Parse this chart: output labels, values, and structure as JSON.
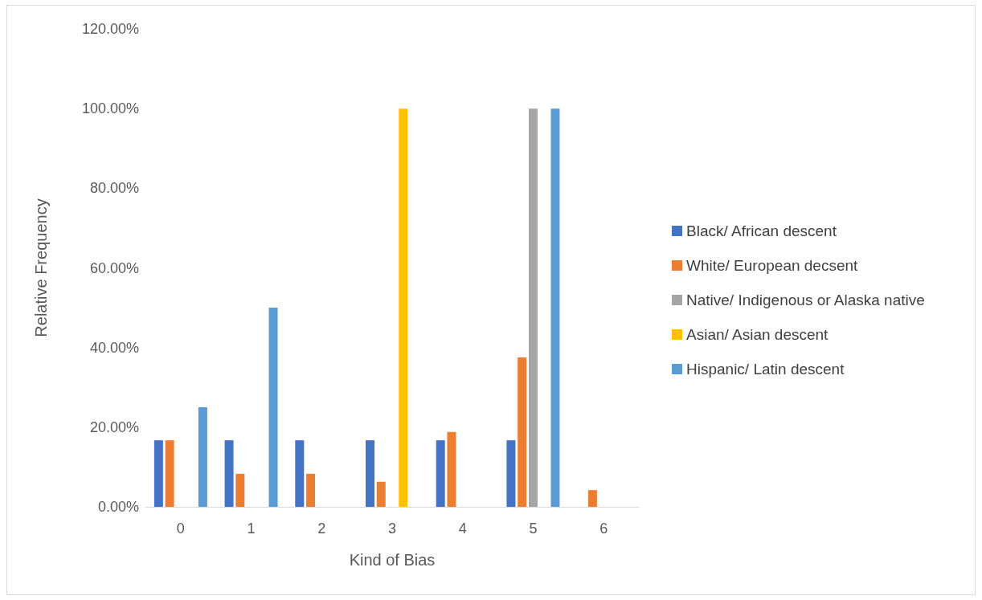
{
  "chart_data": {
    "type": "bar",
    "xlabel": "Kind of Bias",
    "ylabel": "Relative Frequency",
    "categories": [
      "0",
      "1",
      "2",
      "3",
      "4",
      "5",
      "6"
    ],
    "series": [
      {
        "name": "Black/ African descent",
        "color": "#4472c4",
        "values": [
          16.7,
          16.7,
          16.7,
          16.7,
          16.7,
          16.7,
          null
        ]
      },
      {
        "name": "White/ European decsent",
        "color": "#ed7d31",
        "values": [
          16.7,
          8.3,
          8.3,
          6.3,
          18.8,
          37.5,
          4.2
        ]
      },
      {
        "name": "Native/ Indigenous or Alaska native",
        "color": "#a5a5a5",
        "values": [
          null,
          null,
          null,
          null,
          null,
          100,
          null
        ]
      },
      {
        "name": "Asian/ Asian descent",
        "color": "#ffc000",
        "values": [
          null,
          null,
          null,
          100,
          null,
          null,
          null
        ]
      },
      {
        "name": "Hispanic/ Latin descent",
        "color": "#5b9bd5",
        "values": [
          25,
          50,
          null,
          null,
          null,
          100,
          null
        ]
      }
    ],
    "ylim": [
      0,
      120
    ],
    "yticks": [
      {
        "value": 0,
        "label": "0.00%"
      },
      {
        "value": 20,
        "label": "20.00%"
      },
      {
        "value": 40,
        "label": "40.00%"
      },
      {
        "value": 60,
        "label": "60.00%"
      },
      {
        "value": 80,
        "label": "80.00%"
      },
      {
        "value": 100,
        "label": "100.00%"
      },
      {
        "value": 120,
        "label": "120.00%"
      }
    ],
    "grid": false,
    "legend": "right"
  }
}
